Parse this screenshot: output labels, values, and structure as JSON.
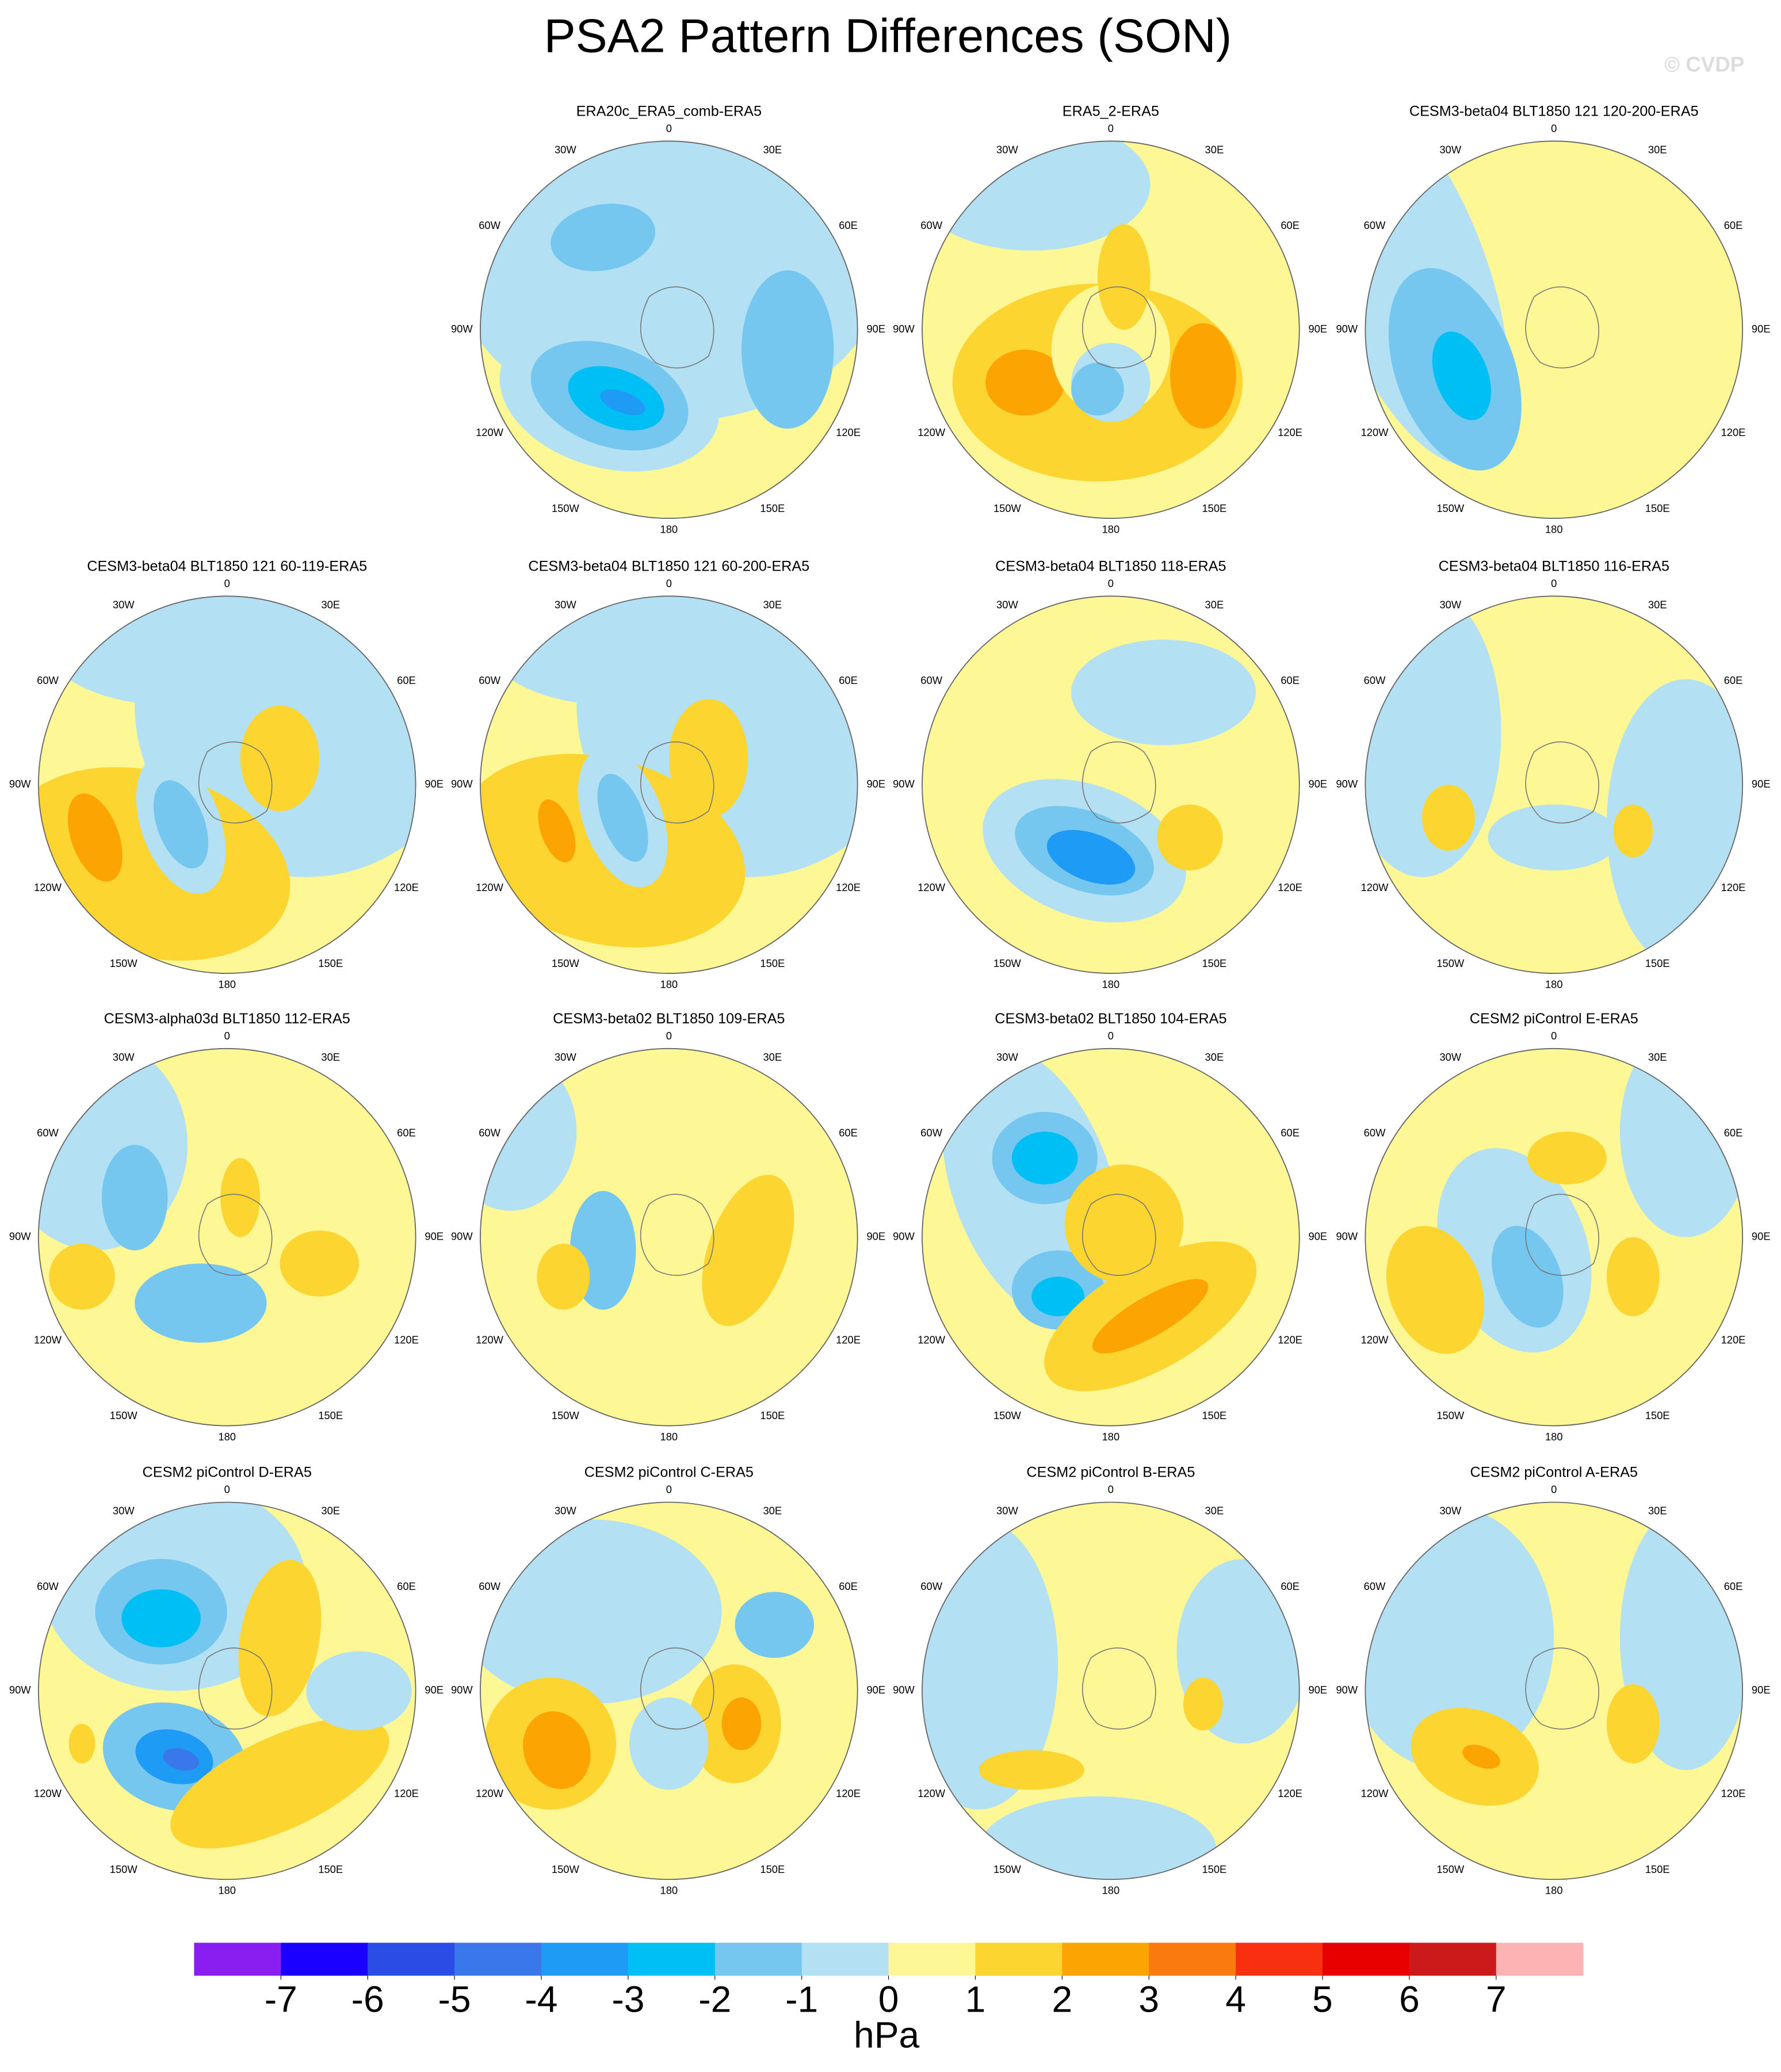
{
  "title": "PSA2 Pattern Differences (SON)",
  "watermark": "© CVDP",
  "panels": [
    {
      "title": "ERA20c_ERA5_comb-ERA5"
    },
    {
      "title": "ERA5_2-ERA5"
    },
    {
      "title": "CESM3-beta04 BLT1850 121 120-200-ERA5"
    },
    {
      "title": "CESM3-beta04 BLT1850 121 60-119-ERA5"
    },
    {
      "title": "CESM3-beta04 BLT1850 121 60-200-ERA5"
    },
    {
      "title": "CESM3-beta04 BLT1850 118-ERA5"
    },
    {
      "title": "CESM3-beta04 BLT1850 116-ERA5"
    },
    {
      "title": "CESM3-alpha03d BLT1850 112-ERA5"
    },
    {
      "title": "CESM3-beta02 BLT1850 109-ERA5"
    },
    {
      "title": "CESM3-beta02 BLT1850 104-ERA5"
    },
    {
      "title": "CESM2 piControl E-ERA5"
    },
    {
      "title": "CESM2 piControl D-ERA5"
    },
    {
      "title": "CESM2 piControl C-ERA5"
    },
    {
      "title": "CESM2 piControl B-ERA5"
    },
    {
      "title": "CESM2 piControl A-ERA5"
    }
  ],
  "longitude_labels": [
    "0",
    "30E",
    "60E",
    "90E",
    "120E",
    "150E",
    "180",
    "150W",
    "120W",
    "90W",
    "60W",
    "30W"
  ],
  "colorbar": {
    "levels": [
      -7,
      -6,
      -5,
      -4,
      -3,
      -2,
      -1,
      0,
      1,
      2,
      3,
      4,
      5,
      6,
      7
    ],
    "colors": [
      "#8a1ef0",
      "#1a00ff",
      "#2c4ce6",
      "#3978ea",
      "#1e9bf5",
      "#00bff5",
      "#75c7f0",
      "#b4e0f3",
      "#fdf795",
      "#fcd530",
      "#fca402",
      "#fb7a10",
      "#f83010",
      "#e80000",
      "#cc1a1a",
      "#fdb3b3"
    ],
    "units": "hPa"
  }
}
